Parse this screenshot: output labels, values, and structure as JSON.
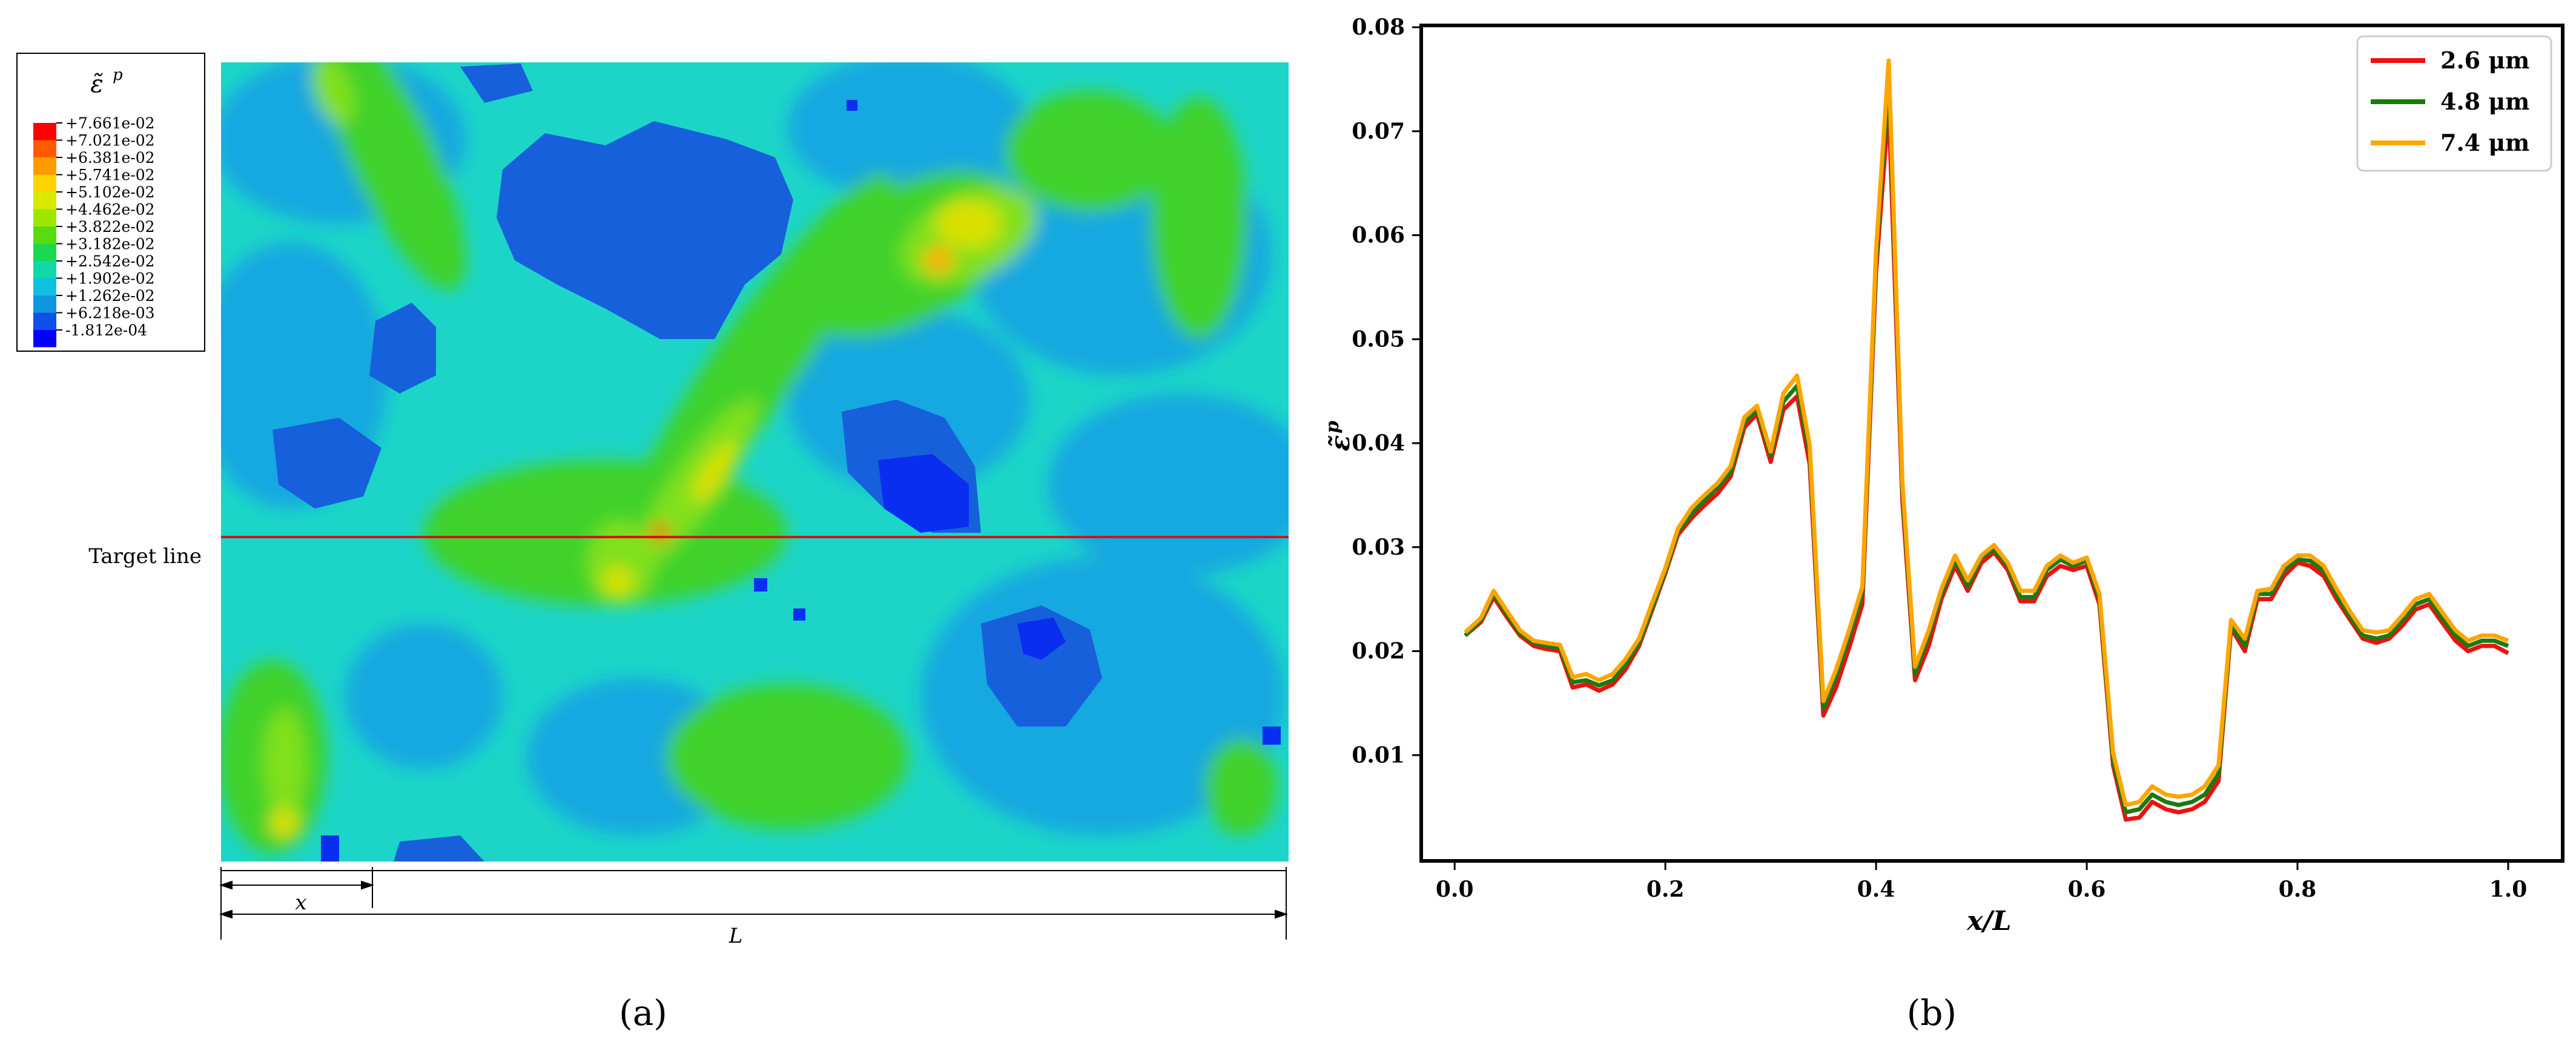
{
  "panel_a": {
    "label": "(a)",
    "legend": {
      "title": "ε̃",
      "title_sup": "p",
      "levels": [
        "+7.661e-02",
        "+7.021e-02",
        "+6.381e-02",
        "+5.741e-02",
        "+5.102e-02",
        "+4.462e-02",
        "+3.822e-02",
        "+3.182e-02",
        "+2.542e-02",
        "+1.902e-02",
        "+1.262e-02",
        "+6.218e-03",
        "-1.812e-04"
      ],
      "colors": [
        "#ff0000",
        "#ff5a00",
        "#ff9a00",
        "#ffd200",
        "#d8e800",
        "#9ee800",
        "#58dc10",
        "#1cd850",
        "#10d8a8",
        "#10c0e0",
        "#1096e0",
        "#1050e8",
        "#0000ff"
      ]
    },
    "target_line_label": "Target line",
    "x_label": "x",
    "L_label": "L",
    "contour_colors": {
      "cyan": "#1cd5c8",
      "light_blue": "#18a8e0",
      "blue": "#1660dc",
      "deep_blue": "#0a2ef0",
      "green": "#3fd22a",
      "light_green": "#80e01a",
      "yellow": "#d8e000",
      "orange": "#ffb000",
      "red": "#ff2000",
      "target_line": "#d41414"
    }
  },
  "panel_b": {
    "label": "(b)",
    "chart_data": {
      "type": "line",
      "xlabel": "x/L",
      "ylabel": "ε̃",
      "ylabel_sup": "p",
      "xlim": [
        -0.03,
        1.05
      ],
      "ylim": [
        0,
        0.08
      ],
      "xticks": [
        "0.0",
        "0.2",
        "0.4",
        "0.6",
        "0.8",
        "1.0"
      ],
      "xtick_values": [
        0,
        0.2,
        0.4,
        0.6,
        0.8,
        1.0
      ],
      "yticks": [
        "0.01",
        "0.02",
        "0.03",
        "0.04",
        "0.05",
        "0.06",
        "0.07",
        "0.08"
      ],
      "ytick_values": [
        0.01,
        0.02,
        0.03,
        0.04,
        0.05,
        0.06,
        0.07,
        0.08
      ],
      "legend_position": "top-right",
      "grid": false,
      "x": [
        0.01,
        0.025,
        0.037,
        0.05,
        0.062,
        0.075,
        0.087,
        0.1,
        0.112,
        0.125,
        0.137,
        0.15,
        0.162,
        0.175,
        0.187,
        0.2,
        0.212,
        0.225,
        0.237,
        0.25,
        0.262,
        0.275,
        0.287,
        0.3,
        0.312,
        0.325,
        0.337,
        0.35,
        0.362,
        0.375,
        0.387,
        0.4,
        0.412,
        0.425,
        0.437,
        0.45,
        0.462,
        0.475,
        0.487,
        0.5,
        0.512,
        0.525,
        0.537,
        0.55,
        0.562,
        0.575,
        0.587,
        0.6,
        0.612,
        0.625,
        0.637,
        0.65,
        0.662,
        0.675,
        0.687,
        0.7,
        0.712,
        0.725,
        0.737,
        0.75,
        0.762,
        0.775,
        0.787,
        0.8,
        0.812,
        0.825,
        0.837,
        0.85,
        0.862,
        0.875,
        0.887,
        0.9,
        0.912,
        0.925,
        0.937,
        0.95,
        0.962,
        0.975,
        0.987,
        1.0
      ],
      "series": [
        {
          "name": "2.6 μm",
          "color": "#ee1010",
          "values": [
            0.0215,
            0.0228,
            0.0252,
            0.0232,
            0.0215,
            0.0205,
            0.0202,
            0.02,
            0.0165,
            0.0168,
            0.0162,
            0.0168,
            0.0182,
            0.0205,
            0.0238,
            0.0275,
            0.0312,
            0.0328,
            0.034,
            0.0352,
            0.0368,
            0.0415,
            0.0428,
            0.0382,
            0.0432,
            0.0445,
            0.038,
            0.0138,
            0.0165,
            0.0205,
            0.0245,
            0.0565,
            0.0725,
            0.0345,
            0.0172,
            0.0205,
            0.025,
            0.0282,
            0.0258,
            0.0285,
            0.0295,
            0.0278,
            0.0248,
            0.0248,
            0.0272,
            0.0282,
            0.0278,
            0.0282,
            0.0245,
            0.009,
            0.0038,
            0.004,
            0.0055,
            0.0048,
            0.0045,
            0.0048,
            0.0055,
            0.0075,
            0.0222,
            0.02,
            0.025,
            0.025,
            0.0272,
            0.0285,
            0.0282,
            0.0272,
            0.025,
            0.023,
            0.0212,
            0.0208,
            0.0212,
            0.0225,
            0.024,
            0.0245,
            0.0228,
            0.021,
            0.02,
            0.0205,
            0.0205,
            0.0198
          ]
        },
        {
          "name": "4.8 μm",
          "color": "#1a7a10",
          "values": [
            0.0215,
            0.023,
            0.0255,
            0.0235,
            0.0217,
            0.0208,
            0.0205,
            0.0203,
            0.017,
            0.0172,
            0.0167,
            0.0172,
            0.0187,
            0.0208,
            0.024,
            0.0277,
            0.0315,
            0.0332,
            0.0345,
            0.0358,
            0.0372,
            0.042,
            0.0432,
            0.0388,
            0.044,
            0.0455,
            0.039,
            0.0145,
            0.0175,
            0.0215,
            0.0255,
            0.0575,
            0.0755,
            0.0355,
            0.0178,
            0.0215,
            0.0255,
            0.0288,
            0.0262,
            0.029,
            0.0298,
            0.0282,
            0.0252,
            0.0252,
            0.0278,
            0.0288,
            0.0282,
            0.0287,
            0.025,
            0.0095,
            0.0045,
            0.0048,
            0.0062,
            0.0055,
            0.0052,
            0.0055,
            0.0062,
            0.0082,
            0.0225,
            0.0205,
            0.0255,
            0.0255,
            0.0278,
            0.0288,
            0.0287,
            0.0277,
            0.0255,
            0.0233,
            0.0215,
            0.0212,
            0.0215,
            0.023,
            0.0245,
            0.025,
            0.0232,
            0.0215,
            0.0205,
            0.021,
            0.021,
            0.0205
          ]
        },
        {
          "name": "7.4 μm",
          "color": "#ffa500",
          "values": [
            0.0218,
            0.0232,
            0.0258,
            0.0238,
            0.022,
            0.021,
            0.0208,
            0.0206,
            0.0175,
            0.0178,
            0.0172,
            0.0178,
            0.0192,
            0.0212,
            0.0245,
            0.028,
            0.0318,
            0.0338,
            0.035,
            0.0362,
            0.0378,
            0.0425,
            0.0436,
            0.0392,
            0.0448,
            0.0465,
            0.0398,
            0.0152,
            0.0182,
            0.0222,
            0.0262,
            0.0585,
            0.0768,
            0.0362,
            0.0185,
            0.022,
            0.026,
            0.0292,
            0.0268,
            0.0292,
            0.0302,
            0.0285,
            0.0258,
            0.0258,
            0.0282,
            0.0292,
            0.0285,
            0.029,
            0.0255,
            0.0102,
            0.0052,
            0.0055,
            0.007,
            0.0062,
            0.006,
            0.0062,
            0.007,
            0.009,
            0.023,
            0.0212,
            0.0258,
            0.026,
            0.0282,
            0.0292,
            0.0292,
            0.0282,
            0.026,
            0.0238,
            0.022,
            0.0218,
            0.022,
            0.0235,
            0.025,
            0.0255,
            0.0238,
            0.022,
            0.021,
            0.0215,
            0.0215,
            0.021
          ]
        }
      ]
    }
  }
}
